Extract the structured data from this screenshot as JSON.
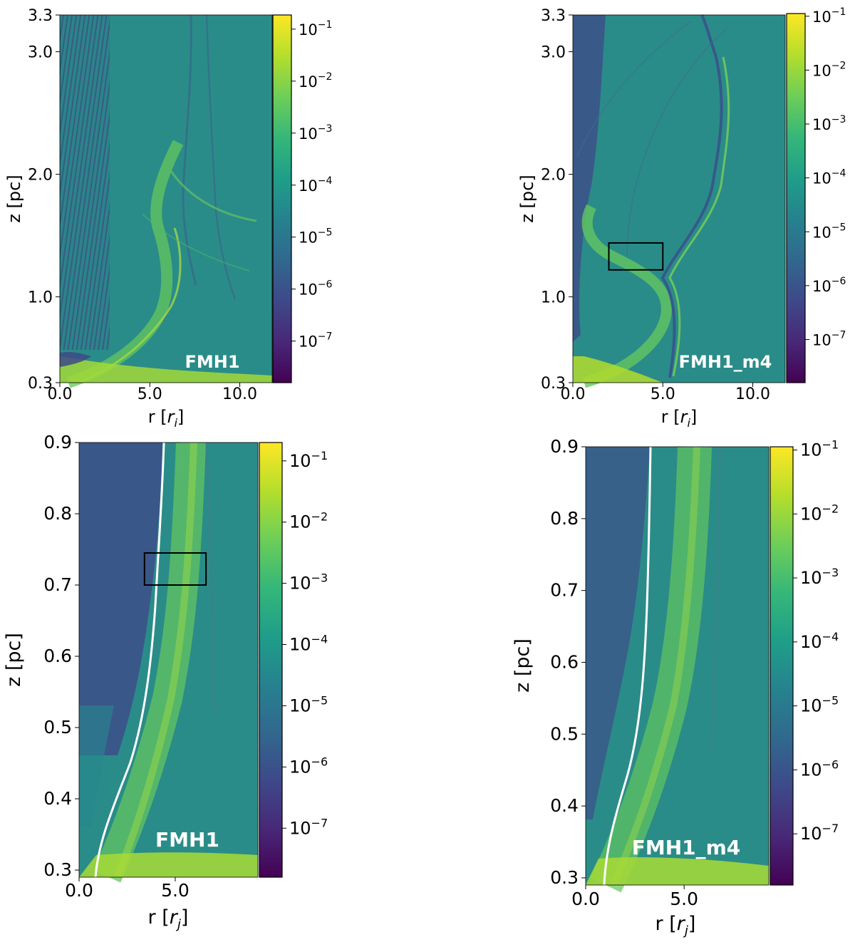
{
  "chart_data": [
    {
      "type": "heatmap",
      "panel": "top-left",
      "annotation": "FMH1",
      "xlabel_main": "r [",
      "xlabel_sym": "r",
      "xlabel_sub": "i",
      "xlabel_end": "]",
      "ylabel": "z [pc]",
      "xlim": [
        0,
        11.8
      ],
      "ylim": [
        0.3,
        3.3
      ],
      "xticks": [
        {
          "v": 0,
          "label": "0.0"
        },
        {
          "v": 5,
          "label": "5.0"
        },
        {
          "v": 10,
          "label": "10.0"
        }
      ],
      "yticks": [
        {
          "v": 0.3,
          "label": "0.3"
        },
        {
          "v": 1.0,
          "label": "1.0"
        },
        {
          "v": 2.0,
          "label": "2.0"
        },
        {
          "v": 3.0,
          "label": "3.0"
        },
        {
          "v": 3.3,
          "label": "3.3"
        }
      ],
      "colorbar": {
        "log_min": -7.8,
        "log_max": -0.7,
        "ticks": [
          {
            "e": -1,
            "label": "−1"
          },
          {
            "e": -2,
            "label": "−2"
          },
          {
            "e": -3,
            "label": "−3"
          },
          {
            "e": -4,
            "label": "−4"
          },
          {
            "e": -5,
            "label": "−5"
          },
          {
            "e": -6,
            "label": "−6"
          },
          {
            "e": -7,
            "label": "−7"
          }
        ]
      },
      "box": null
    },
    {
      "type": "heatmap",
      "panel": "top-right",
      "annotation": "FMH1_m4",
      "xlabel_main": "r [",
      "xlabel_sym": "r",
      "xlabel_sub": "i",
      "xlabel_end": "]",
      "ylabel": "z [pc]",
      "xlim": [
        0,
        11.8
      ],
      "ylim": [
        0.3,
        3.3
      ],
      "xticks": [
        {
          "v": 0,
          "label": "0.0"
        },
        {
          "v": 5,
          "label": "5.0"
        },
        {
          "v": 10,
          "label": "10.0"
        }
      ],
      "yticks": [
        {
          "v": 0.3,
          "label": "0.3"
        },
        {
          "v": 1.0,
          "label": "1.0"
        },
        {
          "v": 2.0,
          "label": "2.0"
        },
        {
          "v": 3.0,
          "label": "3.0"
        },
        {
          "v": 3.3,
          "label": "3.3"
        }
      ],
      "colorbar": {
        "log_min": -7.8,
        "log_max": -0.95,
        "ticks": [
          {
            "e": -1,
            "label": "−1"
          },
          {
            "e": -2,
            "label": "−2"
          },
          {
            "e": -3,
            "label": "−3"
          },
          {
            "e": -4,
            "label": "−4"
          },
          {
            "e": -5,
            "label": "−5"
          },
          {
            "e": -6,
            "label": "−6"
          },
          {
            "e": -7,
            "label": "−7"
          }
        ]
      },
      "box": {
        "x0": 2.0,
        "x1": 5.0,
        "y0": 1.22,
        "y1": 1.44
      }
    },
    {
      "type": "heatmap",
      "panel": "bottom-left",
      "annotation": "FMH1",
      "xlabel_main": "r [",
      "xlabel_sym": "r",
      "xlabel_sub": "j",
      "xlabel_end": "]",
      "ylabel": "z [pc]",
      "xlim": [
        0,
        9.3
      ],
      "ylim": [
        0.29,
        0.9
      ],
      "xticks": [
        {
          "v": 0,
          "label": "0.0"
        },
        {
          "v": 5,
          "label": "5.0"
        }
      ],
      "yticks": [
        {
          "v": 0.3,
          "label": "0.3"
        },
        {
          "v": 0.4,
          "label": "0.4"
        },
        {
          "v": 0.5,
          "label": "0.5"
        },
        {
          "v": 0.6,
          "label": "0.6"
        },
        {
          "v": 0.7,
          "label": "0.7"
        },
        {
          "v": 0.8,
          "label": "0.8"
        },
        {
          "v": 0.9,
          "label": "0.9"
        }
      ],
      "colorbar": {
        "log_min": -7.8,
        "log_max": -0.7,
        "ticks": [
          {
            "e": -1,
            "label": "−1"
          },
          {
            "e": -2,
            "label": "−2"
          },
          {
            "e": -3,
            "label": "−3"
          },
          {
            "e": -4,
            "label": "−4"
          },
          {
            "e": -5,
            "label": "−5"
          },
          {
            "e": -6,
            "label": "−6"
          },
          {
            "e": -7,
            "label": "−7"
          }
        ]
      },
      "box": {
        "x0": 3.4,
        "x1": 6.6,
        "y0": 0.7,
        "y1": 0.745
      }
    },
    {
      "type": "heatmap",
      "panel": "bottom-right",
      "annotation": "FMH1_m4",
      "xlabel_main": "r [",
      "xlabel_sym": "r",
      "xlabel_sub": "j",
      "xlabel_end": "]",
      "ylabel": "z [pc]",
      "xlim": [
        0,
        9.3
      ],
      "ylim": [
        0.29,
        0.9
      ],
      "xticks": [
        {
          "v": 0,
          "label": "0.0"
        },
        {
          "v": 5,
          "label": "5.0"
        }
      ],
      "yticks": [
        {
          "v": 0.3,
          "label": "0.3"
        },
        {
          "v": 0.4,
          "label": "0.4"
        },
        {
          "v": 0.5,
          "label": "0.5"
        },
        {
          "v": 0.6,
          "label": "0.6"
        },
        {
          "v": 0.7,
          "label": "0.7"
        },
        {
          "v": 0.8,
          "label": "0.8"
        },
        {
          "v": 0.9,
          "label": "0.9"
        }
      ],
      "colorbar": {
        "log_min": -7.8,
        "log_max": -0.95,
        "ticks": [
          {
            "e": -1,
            "label": "−1"
          },
          {
            "e": -2,
            "label": "−2"
          },
          {
            "e": -3,
            "label": "−3"
          },
          {
            "e": -4,
            "label": "−4"
          },
          {
            "e": -5,
            "label": "−5"
          },
          {
            "e": -6,
            "label": "−6"
          },
          {
            "e": -7,
            "label": "−7"
          }
        ]
      },
      "box": null
    }
  ],
  "colormap": {
    "name": "viridis",
    "stops": [
      "#440154",
      "#482878",
      "#3e4989",
      "#31688e",
      "#26828e",
      "#1f9e89",
      "#35b779",
      "#6ece58",
      "#b5de2b",
      "#fde725"
    ]
  },
  "colors": {
    "background_field": "#2a8c88",
    "jet_band": "#5cc164",
    "dark_spine": "#3a3f85",
    "base_hot": "#b5de2b",
    "contour": "#ffffff",
    "box": "#000000"
  }
}
